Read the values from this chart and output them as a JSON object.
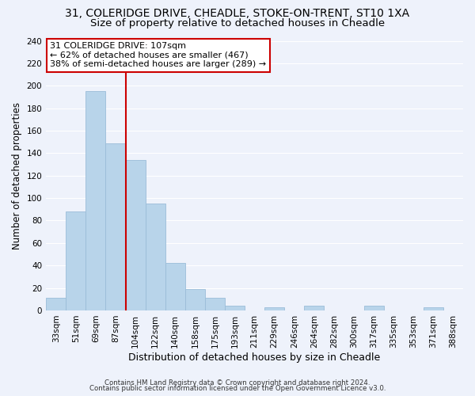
{
  "title": "31, COLERIDGE DRIVE, CHEADLE, STOKE-ON-TRENT, ST10 1XA",
  "subtitle": "Size of property relative to detached houses in Cheadle",
  "xlabel": "Distribution of detached houses by size in Cheadle",
  "ylabel": "Number of detached properties",
  "bar_labels": [
    "33sqm",
    "51sqm",
    "69sqm",
    "87sqm",
    "104sqm",
    "122sqm",
    "140sqm",
    "158sqm",
    "175sqm",
    "193sqm",
    "211sqm",
    "229sqm",
    "246sqm",
    "264sqm",
    "282sqm",
    "300sqm",
    "317sqm",
    "335sqm",
    "353sqm",
    "371sqm",
    "388sqm"
  ],
  "bar_values": [
    11,
    88,
    195,
    149,
    134,
    95,
    42,
    19,
    11,
    4,
    0,
    3,
    0,
    4,
    0,
    0,
    4,
    0,
    0,
    3,
    0
  ],
  "bar_color": "#b8d4ea",
  "bar_edge_color": "#9abcd8",
  "vline_color": "#cc0000",
  "annotation_text": "31 COLERIDGE DRIVE: 107sqm\n← 62% of detached houses are smaller (467)\n38% of semi-detached houses are larger (289) →",
  "annotation_box_edge_color": "#cc0000",
  "annotation_box_face_color": "#ffffff",
  "ylim": [
    0,
    240
  ],
  "yticks": [
    0,
    20,
    40,
    60,
    80,
    100,
    120,
    140,
    160,
    180,
    200,
    220,
    240
  ],
  "title_fontsize": 10,
  "subtitle_fontsize": 9.5,
  "xlabel_fontsize": 9,
  "ylabel_fontsize": 8.5,
  "tick_fontsize": 7.5,
  "annotation_fontsize": 8,
  "footer_line1": "Contains HM Land Registry data © Crown copyright and database right 2024.",
  "footer_line2": "Contains public sector information licensed under the Open Government Licence v3.0.",
  "background_color": "#eef2fb",
  "plot_bg_color": "#eef2fb",
  "grid_color": "#ffffff",
  "vline_bar_index": 4
}
